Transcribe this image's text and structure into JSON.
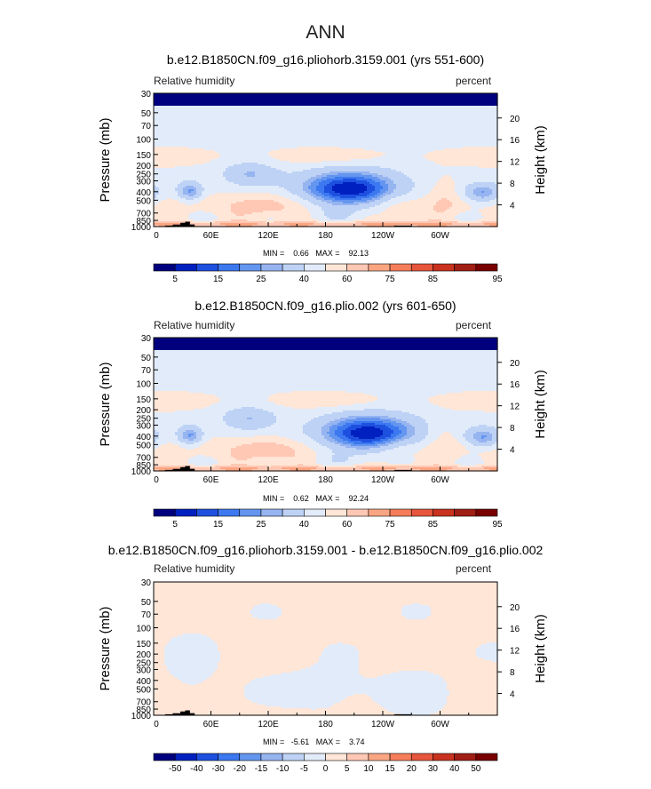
{
  "figure_title": "ANN",
  "panels": [
    {
      "title": "b.e12.B1850CN.f09_g16.pliohorb.3159.001 (yrs 551-600)",
      "left_label": "Relative humidity",
      "right_label": "percent",
      "stats": "MIN =    0.66   MAX =    92.13",
      "kind": "abs"
    },
    {
      "title": "b.e12.B1850CN.f09_g16.plio.002 (yrs 601-650)",
      "left_label": "Relative humidity",
      "right_label": "percent",
      "stats": "MIN =    0.62   MAX =    92.24",
      "kind": "abs"
    },
    {
      "title": "b.e12.B1850CN.f09_g16.pliohorb.3159.001 - b.e12.B1850CN.f09_g16.plio.002",
      "left_label": "Relative humidity",
      "right_label": "percent",
      "stats": "MIN =   -5.61   MAX =    3.74",
      "kind": "diff"
    }
  ],
  "axes": {
    "ylabel": "Pressure  (mb)",
    "y2label": "Height  (km)",
    "pressure_ticks": [
      "30",
      "50",
      "70",
      "100",
      "150",
      "200",
      "250",
      "300",
      "400",
      "500",
      "700",
      "850",
      "1000"
    ],
    "height_ticks": [
      "20",
      "16",
      "12",
      "8",
      "4"
    ],
    "lon_ticks": [
      "0",
      "60E",
      "120E",
      "180",
      "120W",
      "60W"
    ]
  },
  "colorbars": {
    "abs": {
      "labels": [
        "5",
        "15",
        "25",
        "40",
        "60",
        "75",
        "85",
        "95"
      ],
      "colors": [
        "#00007F",
        "#0020BF",
        "#1E50E0",
        "#3C78F0",
        "#6496F0",
        "#96B4F0",
        "#BED2F5",
        "#E1EBFA",
        "#FFE6D7",
        "#FFC8B4",
        "#FAA582",
        "#F57D5A",
        "#E6553C",
        "#C8321E",
        "#A01E14",
        "#780000"
      ]
    },
    "diff": {
      "labels": [
        "-50",
        "-40",
        "-30",
        "-20",
        "-15",
        "-10",
        "-5",
        "0",
        "5",
        "10",
        "15",
        "20",
        "30",
        "40",
        "50"
      ],
      "colors": [
        "#00007F",
        "#0020BF",
        "#1E50E0",
        "#3C78F0",
        "#6496F0",
        "#96B4F0",
        "#BED2F5",
        "#E1EBFA",
        "#FFE6D7",
        "#FFC8B4",
        "#FAA582",
        "#F57D5A",
        "#E6553C",
        "#C8321E",
        "#A01E14",
        "#780000"
      ]
    }
  },
  "chart_data": [
    {
      "type": "heatmap",
      "title": "b.e12.B1850CN.f09_g16.pliohorb.3159.001 (yrs 551-600)",
      "variable": "Relative humidity",
      "units": "percent",
      "x": "longitude (0 to 360)",
      "y": "pressure (mb, 30 to 1000)",
      "min": 0.66,
      "max": 92.13,
      "features": [
        {
          "desc": "dry core",
          "lon": 205,
          "pressure": 390,
          "value": 5
        },
        {
          "desc": "dry pocket",
          "lon": 38,
          "pressure": 400,
          "value": 25
        },
        {
          "desc": "dry pocket",
          "lon": 345,
          "pressure": 420,
          "value": 25
        },
        {
          "desc": "moist boundary layer",
          "lon": 180,
          "pressure": 950,
          "value": 85
        }
      ]
    },
    {
      "type": "heatmap",
      "title": "b.e12.B1850CN.f09_g16.plio.002 (yrs 601-650)",
      "variable": "Relative humidity",
      "units": "percent",
      "x": "longitude (0 to 360)",
      "y": "pressure (mb, 30 to 1000)",
      "min": 0.62,
      "max": 92.24,
      "features": [
        {
          "desc": "dry core",
          "lon": 225,
          "pressure": 380,
          "value": 5
        },
        {
          "desc": "dry pocket",
          "lon": 38,
          "pressure": 400,
          "value": 25
        },
        {
          "desc": "dry pocket",
          "lon": 345,
          "pressure": 420,
          "value": 25
        },
        {
          "desc": "moist boundary layer",
          "lon": 180,
          "pressure": 950,
          "value": 85
        }
      ]
    },
    {
      "type": "heatmap",
      "title": "b.e12.B1850CN.f09_g16.pliohorb.3159.001 - b.e12.B1850CN.f09_g16.plio.002",
      "variable": "Relative humidity",
      "units": "percent",
      "x": "longitude (0 to 360)",
      "y": "pressure (mb, 30 to 1000)",
      "min": -5.61,
      "max": 3.74,
      "features": [
        {
          "desc": "slightly moister",
          "lon": 0,
          "pressure": 300,
          "value": 2
        },
        {
          "desc": "slightly drier",
          "lon": 180,
          "pressure": 500,
          "value": -3
        }
      ]
    }
  ]
}
